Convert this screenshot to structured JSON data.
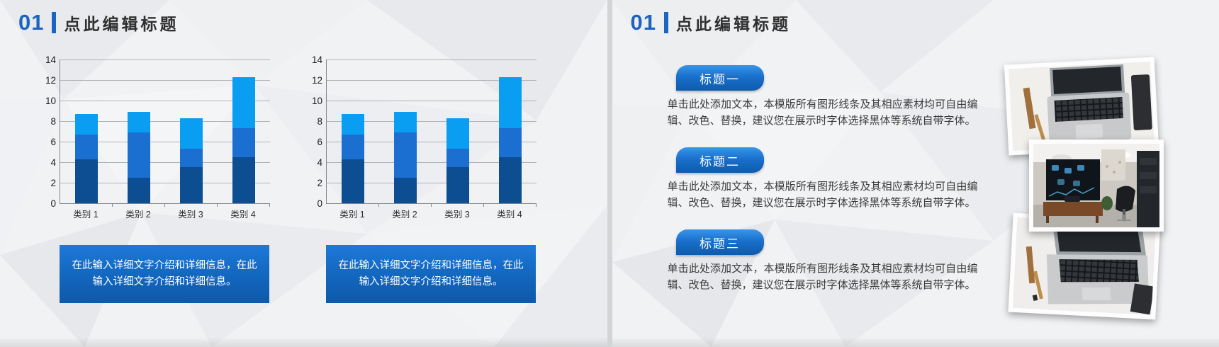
{
  "accent_blue": "#1c64c2",
  "slides": {
    "left": {
      "number": "01",
      "title": "点此编辑标题",
      "captions": [
        "在此输入详细文字介绍和详细信息，在此输入详细文字介绍和详细信息。",
        "在此输入详细文字介绍和详细信息，在此输入详细文字介绍和详细信息。"
      ]
    },
    "right": {
      "number": "01",
      "title": "点此编辑标题",
      "sections": [
        {
          "heading": "标题一",
          "body": "单击此处添加文本，本模版所有图形线条及其相应素材均可自由编辑、改色、替换，建议您在展示时字体选择黑体等系统自带字体。"
        },
        {
          "heading": "标题二",
          "body": "单击此处添加文本，本模版所有图形线条及其相应素材均可自由编辑、改色、替换，建议您在展示时字体选择黑体等系统自带字体。"
        },
        {
          "heading": "标题三",
          "body": "单击此处添加文本，本模版所有图形线条及其相应素材均可自由编辑、改色、替换，建议您在展示时字体选择黑体等系统自带字体。"
        }
      ],
      "photos": [
        "laptop-desk-photo",
        "office-interior-photo",
        "laptop-desk-photo"
      ]
    }
  },
  "chart_data": [
    {
      "type": "bar",
      "stacked": true,
      "title": "",
      "xlabel": "",
      "ylabel": "",
      "categories": [
        "类别 1",
        "类别 2",
        "类别 3",
        "类别 4"
      ],
      "series": [
        {
          "color": "#0d4e92",
          "values": [
            4.3,
            2.5,
            3.5,
            4.5
          ]
        },
        {
          "color": "#1b6fd1",
          "values": [
            2.4,
            4.4,
            1.8,
            2.8
          ]
        },
        {
          "color": "#0a9ef2",
          "values": [
            2.0,
            2.0,
            3.0,
            5.0
          ]
        }
      ],
      "totals": [
        8.7,
        8.9,
        8.3,
        12.3
      ],
      "ylim": [
        0,
        14
      ],
      "ytick_step": 2,
      "grid": true,
      "legend": "none"
    },
    {
      "type": "bar",
      "stacked": true,
      "title": "",
      "xlabel": "",
      "ylabel": "",
      "categories": [
        "类别 1",
        "类别 2",
        "类别 3",
        "类别 4"
      ],
      "series": [
        {
          "color": "#0d4e92",
          "values": [
            4.3,
            2.5,
            3.5,
            4.5
          ]
        },
        {
          "color": "#1b6fd1",
          "values": [
            2.4,
            4.4,
            1.8,
            2.8
          ]
        },
        {
          "color": "#0a9ef2",
          "values": [
            2.0,
            2.0,
            3.0,
            5.0
          ]
        }
      ],
      "totals": [
        8.7,
        8.9,
        8.3,
        12.3
      ],
      "ylim": [
        0,
        14
      ],
      "ytick_step": 2,
      "grid": true,
      "legend": "none"
    }
  ]
}
